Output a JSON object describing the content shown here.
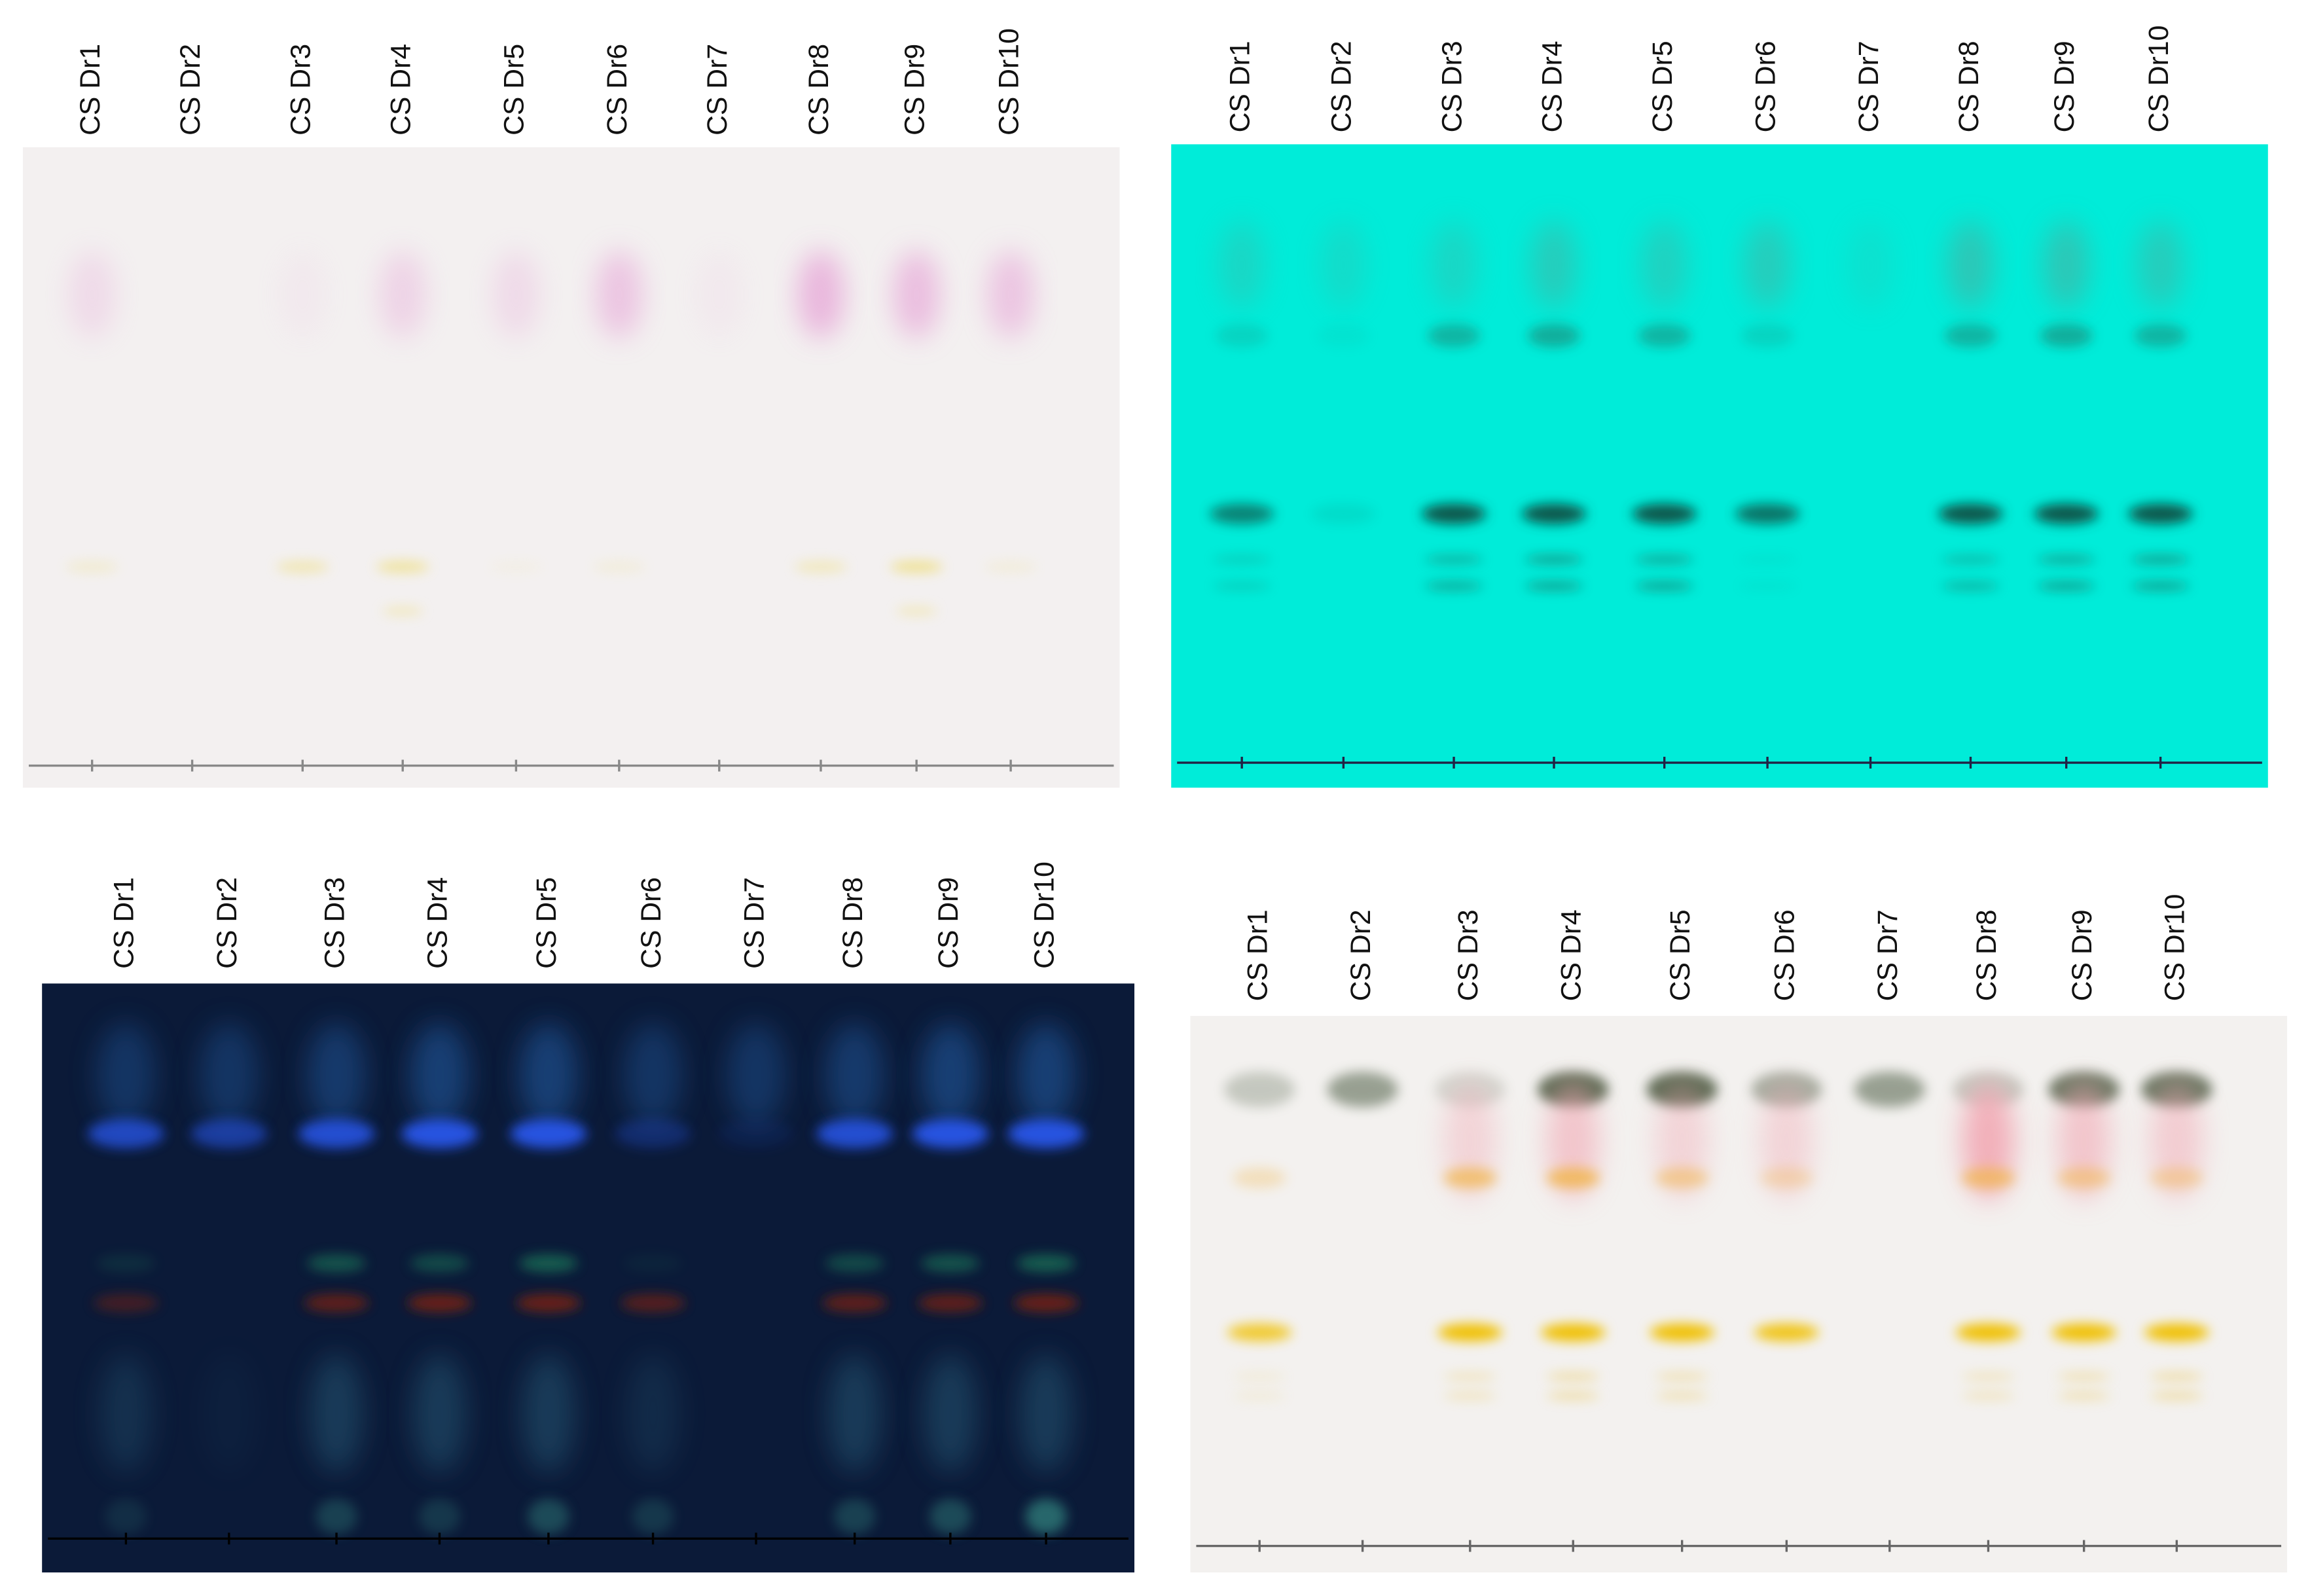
{
  "panels": [
    {
      "lanes": [
        "CS Dr1",
        "CS Dr2",
        "CS Dr3",
        "CS Dr4",
        "CS Dr5",
        "CS Dr6",
        "CS Dr7",
        "CS Dr8",
        "CS Dr9",
        "CS Dr10"
      ]
    },
    {
      "lanes": [
        "CS Dr1",
        "CS Dr2",
        "CS Dr3",
        "CS Dr4",
        "CS Dr5",
        "CS Dr6",
        "CS Dr7",
        "CS Dr8",
        "CS Dr9",
        "CS Dr10"
      ]
    },
    {
      "lanes": [
        "CS Dr1",
        "CS Dr2",
        "CS Dr3",
        "CS Dr4",
        "CS Dr5",
        "CS Dr6",
        "CS Dr7",
        "CS Dr8",
        "CS Dr9",
        "CS Dr10"
      ]
    },
    {
      "lanes": [
        "CS Dr1",
        "CS Dr2",
        "CS Dr3",
        "CS Dr4",
        "CS Dr5",
        "CS Dr6",
        "CS Dr7",
        "CS Dr8",
        "CS Dr9",
        "CS Dr10"
      ]
    }
  ]
}
